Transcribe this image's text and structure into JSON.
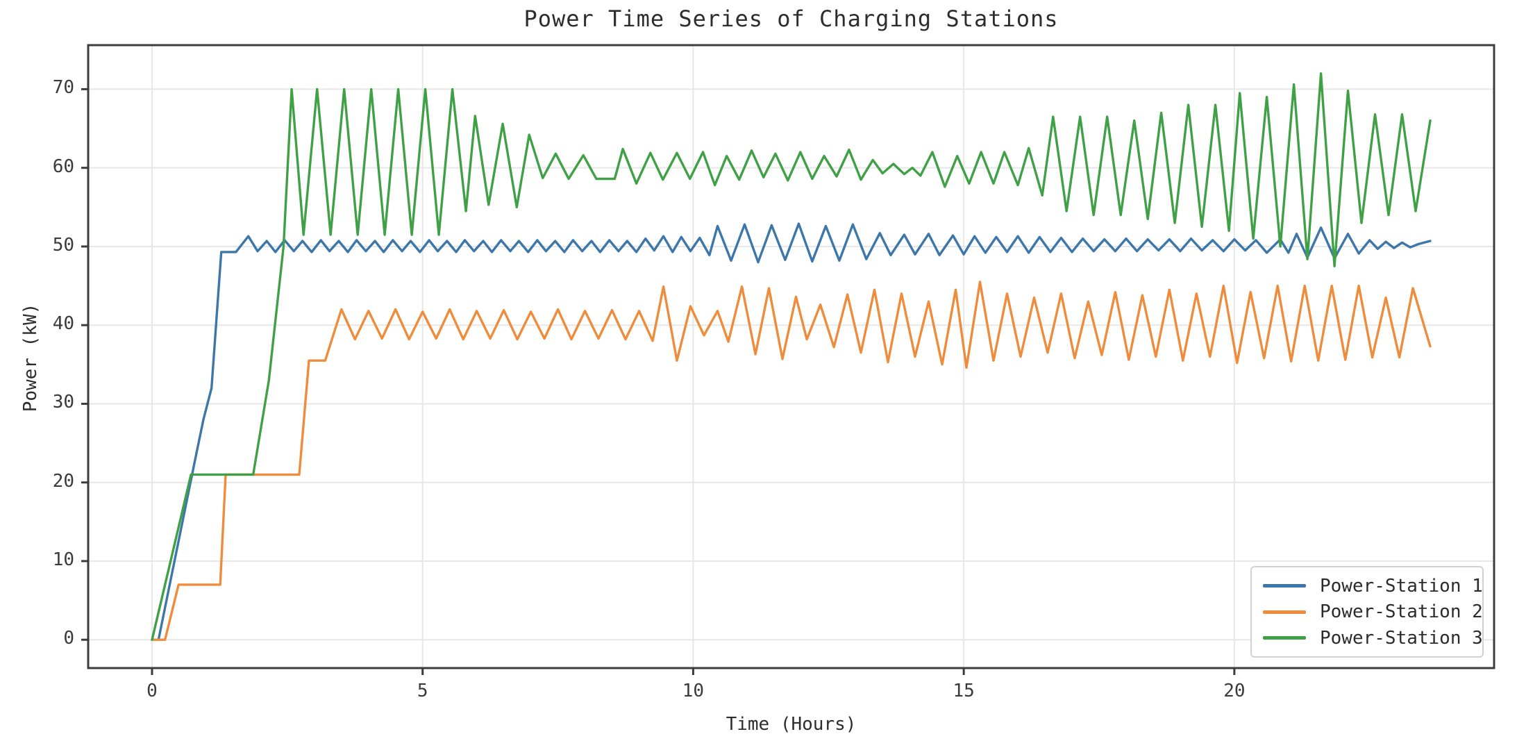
{
  "title": "Power Time Series of Charging Stations",
  "chart_data": {
    "type": "line",
    "title": "Power Time Series of Charging Stations",
    "xlabel": "Time (Hours)",
    "ylabel": "Power (kW)",
    "xlim": [
      -1.18,
      24.8
    ],
    "ylim": [
      -3.6,
      75.6
    ],
    "xticks": [
      0,
      5,
      10,
      15,
      20
    ],
    "yticks": [
      0,
      10,
      20,
      30,
      40,
      50,
      60,
      70
    ],
    "grid": true,
    "grid_color": "#e7e7e7",
    "spine_color": "#3c3c3c",
    "legend_position": "lower right",
    "series": [
      {
        "name": "Power-Station 1",
        "color": "#3d76a8",
        "points": [
          [
            0.12,
            0
          ],
          [
            0.8,
            23
          ],
          [
            0.95,
            28
          ],
          [
            1.1,
            32
          ],
          [
            1.28,
            49.3
          ],
          [
            1.55,
            49.3
          ],
          [
            1.78,
            51.3
          ],
          [
            1.95,
            49.4
          ],
          [
            2.12,
            50.7
          ],
          [
            2.28,
            49.3
          ],
          [
            2.45,
            50.8
          ],
          [
            2.62,
            49.4
          ],
          [
            2.78,
            50.7
          ],
          [
            2.95,
            49.3
          ],
          [
            3.12,
            50.8
          ],
          [
            3.28,
            49.4
          ],
          [
            3.45,
            50.7
          ],
          [
            3.62,
            49.3
          ],
          [
            3.78,
            50.8
          ],
          [
            3.95,
            49.4
          ],
          [
            4.12,
            50.7
          ],
          [
            4.28,
            49.3
          ],
          [
            4.45,
            50.8
          ],
          [
            4.62,
            49.4
          ],
          [
            4.78,
            50.7
          ],
          [
            4.95,
            49.3
          ],
          [
            5.12,
            50.8
          ],
          [
            5.28,
            49.4
          ],
          [
            5.45,
            50.7
          ],
          [
            5.62,
            49.3
          ],
          [
            5.78,
            50.8
          ],
          [
            5.95,
            49.4
          ],
          [
            6.12,
            50.7
          ],
          [
            6.28,
            49.3
          ],
          [
            6.45,
            50.8
          ],
          [
            6.62,
            49.4
          ],
          [
            6.78,
            50.7
          ],
          [
            6.95,
            49.3
          ],
          [
            7.12,
            50.8
          ],
          [
            7.28,
            49.4
          ],
          [
            7.45,
            50.7
          ],
          [
            7.62,
            49.3
          ],
          [
            7.78,
            50.8
          ],
          [
            7.95,
            49.4
          ],
          [
            8.12,
            50.7
          ],
          [
            8.28,
            49.3
          ],
          [
            8.45,
            50.8
          ],
          [
            8.62,
            49.4
          ],
          [
            8.78,
            50.7
          ],
          [
            8.95,
            49.3
          ],
          [
            9.12,
            51.0
          ],
          [
            9.28,
            49.5
          ],
          [
            9.45,
            51.3
          ],
          [
            9.62,
            49.3
          ],
          [
            9.78,
            51.2
          ],
          [
            9.95,
            49.4
          ],
          [
            10.12,
            51.1
          ],
          [
            10.3,
            48.9
          ],
          [
            10.45,
            52.6
          ],
          [
            10.7,
            48.2
          ],
          [
            10.95,
            52.8
          ],
          [
            11.2,
            48.0
          ],
          [
            11.45,
            52.7
          ],
          [
            11.7,
            48.3
          ],
          [
            11.95,
            52.9
          ],
          [
            12.2,
            48.1
          ],
          [
            12.45,
            52.6
          ],
          [
            12.7,
            48.2
          ],
          [
            12.95,
            52.8
          ],
          [
            13.2,
            48.4
          ],
          [
            13.45,
            51.7
          ],
          [
            13.65,
            48.9
          ],
          [
            13.9,
            51.5
          ],
          [
            14.1,
            49.0
          ],
          [
            14.35,
            51.6
          ],
          [
            14.55,
            48.9
          ],
          [
            14.8,
            51.4
          ],
          [
            15.0,
            49.0
          ],
          [
            15.2,
            51.3
          ],
          [
            15.4,
            49.2
          ],
          [
            15.6,
            51.2
          ],
          [
            15.8,
            49.3
          ],
          [
            16.0,
            51.3
          ],
          [
            16.2,
            49.2
          ],
          [
            16.4,
            51.2
          ],
          [
            16.6,
            49.3
          ],
          [
            16.8,
            51.1
          ],
          [
            17.0,
            49.3
          ],
          [
            17.2,
            51.0
          ],
          [
            17.4,
            49.4
          ],
          [
            17.6,
            50.9
          ],
          [
            17.8,
            49.4
          ],
          [
            18.0,
            51.0
          ],
          [
            18.2,
            49.4
          ],
          [
            18.4,
            50.9
          ],
          [
            18.6,
            49.5
          ],
          [
            18.8,
            50.9
          ],
          [
            19.0,
            49.4
          ],
          [
            19.2,
            51.0
          ],
          [
            19.4,
            49.5
          ],
          [
            19.6,
            50.8
          ],
          [
            19.8,
            49.4
          ],
          [
            20.0,
            50.9
          ],
          [
            20.2,
            49.5
          ],
          [
            20.4,
            50.8
          ],
          [
            20.6,
            49.2
          ],
          [
            20.85,
            50.9
          ],
          [
            21.0,
            49.2
          ],
          [
            21.15,
            51.6
          ],
          [
            21.35,
            48.6
          ],
          [
            21.6,
            52.4
          ],
          [
            21.85,
            48.5
          ],
          [
            22.1,
            51.6
          ],
          [
            22.3,
            49.1
          ],
          [
            22.5,
            50.8
          ],
          [
            22.65,
            49.7
          ],
          [
            22.8,
            50.6
          ],
          [
            22.95,
            49.8
          ],
          [
            23.1,
            50.5
          ],
          [
            23.25,
            49.9
          ],
          [
            23.4,
            50.3
          ],
          [
            23.62,
            50.7
          ]
        ]
      },
      {
        "name": "Power-Station 2",
        "color": "#ee8c3c",
        "points": [
          [
            0,
            0
          ],
          [
            0.24,
            0
          ],
          [
            0.49,
            7
          ],
          [
            1.26,
            7
          ],
          [
            1.36,
            21
          ],
          [
            2.72,
            21
          ],
          [
            2.9,
            35.5
          ],
          [
            3.2,
            35.5
          ],
          [
            3.5,
            42
          ],
          [
            3.75,
            38.2
          ],
          [
            4.0,
            41.8
          ],
          [
            4.25,
            38.3
          ],
          [
            4.5,
            42.0
          ],
          [
            4.75,
            38.2
          ],
          [
            5.0,
            41.7
          ],
          [
            5.25,
            38.3
          ],
          [
            5.5,
            42.0
          ],
          [
            5.75,
            38.2
          ],
          [
            6.0,
            41.8
          ],
          [
            6.25,
            38.3
          ],
          [
            6.5,
            41.9
          ],
          [
            6.75,
            38.2
          ],
          [
            7.0,
            41.7
          ],
          [
            7.25,
            38.3
          ],
          [
            7.5,
            42.0
          ],
          [
            7.75,
            38.2
          ],
          [
            8.0,
            41.8
          ],
          [
            8.25,
            38.3
          ],
          [
            8.5,
            41.9
          ],
          [
            8.75,
            38.2
          ],
          [
            9.0,
            41.8
          ],
          [
            9.25,
            38.0
          ],
          [
            9.45,
            44.9
          ],
          [
            9.7,
            35.5
          ],
          [
            9.95,
            42.4
          ],
          [
            10.2,
            38.7
          ],
          [
            10.45,
            41.8
          ],
          [
            10.65,
            37.9
          ],
          [
            10.9,
            44.9
          ],
          [
            11.15,
            36.3
          ],
          [
            11.4,
            44.7
          ],
          [
            11.65,
            35.7
          ],
          [
            11.9,
            43.6
          ],
          [
            12.1,
            38.2
          ],
          [
            12.35,
            42.6
          ],
          [
            12.6,
            37.2
          ],
          [
            12.85,
            43.9
          ],
          [
            13.1,
            36.5
          ],
          [
            13.35,
            44.5
          ],
          [
            13.6,
            35.3
          ],
          [
            13.85,
            44.0
          ],
          [
            14.1,
            36.0
          ],
          [
            14.35,
            43.0
          ],
          [
            14.6,
            35.0
          ],
          [
            14.85,
            44.5
          ],
          [
            15.05,
            34.6
          ],
          [
            15.3,
            45.5
          ],
          [
            15.55,
            35.5
          ],
          [
            15.8,
            44.0
          ],
          [
            16.05,
            36.0
          ],
          [
            16.3,
            43.5
          ],
          [
            16.55,
            36.5
          ],
          [
            16.8,
            44.0
          ],
          [
            17.05,
            35.8
          ],
          [
            17.3,
            43.0
          ],
          [
            17.55,
            36.2
          ],
          [
            17.8,
            44.2
          ],
          [
            18.05,
            35.6
          ],
          [
            18.3,
            43.8
          ],
          [
            18.55,
            36.0
          ],
          [
            18.8,
            44.5
          ],
          [
            19.05,
            35.5
          ],
          [
            19.3,
            44.0
          ],
          [
            19.55,
            36.0
          ],
          [
            19.8,
            45.0
          ],
          [
            20.05,
            35.2
          ],
          [
            20.3,
            44.2
          ],
          [
            20.55,
            35.8
          ],
          [
            20.8,
            45.0
          ],
          [
            21.05,
            35.4
          ],
          [
            21.3,
            45.0
          ],
          [
            21.55,
            35.5
          ],
          [
            21.8,
            45.0
          ],
          [
            22.05,
            35.6
          ],
          [
            22.3,
            45.0
          ],
          [
            22.55,
            35.9
          ],
          [
            22.8,
            43.5
          ],
          [
            23.05,
            35.9
          ],
          [
            23.3,
            44.7
          ],
          [
            23.62,
            37.3
          ]
        ]
      },
      {
        "name": "Power-Station 3",
        "color": "#3fa046",
        "points": [
          [
            0,
            0
          ],
          [
            0.72,
            21
          ],
          [
            1.87,
            21
          ],
          [
            2.16,
            33
          ],
          [
            2.43,
            50
          ],
          [
            2.58,
            70
          ],
          [
            2.8,
            51.5
          ],
          [
            3.05,
            70
          ],
          [
            3.3,
            51.5
          ],
          [
            3.55,
            70
          ],
          [
            3.8,
            51.5
          ],
          [
            4.05,
            70
          ],
          [
            4.3,
            51.5
          ],
          [
            4.55,
            70
          ],
          [
            4.8,
            51.5
          ],
          [
            5.05,
            70
          ],
          [
            5.3,
            51.5
          ],
          [
            5.55,
            70
          ],
          [
            5.8,
            54.5
          ],
          [
            5.97,
            66.6
          ],
          [
            6.22,
            55.3
          ],
          [
            6.48,
            65.6
          ],
          [
            6.74,
            55.0
          ],
          [
            6.97,
            64.2
          ],
          [
            7.22,
            58.7
          ],
          [
            7.46,
            61.8
          ],
          [
            7.7,
            58.6
          ],
          [
            7.97,
            61.6
          ],
          [
            8.21,
            58.6
          ],
          [
            8.55,
            58.6
          ],
          [
            8.7,
            62.4
          ],
          [
            8.95,
            58.0
          ],
          [
            9.21,
            61.9
          ],
          [
            9.44,
            58.5
          ],
          [
            9.7,
            61.9
          ],
          [
            9.94,
            58.6
          ],
          [
            10.18,
            62.0
          ],
          [
            10.4,
            57.8
          ],
          [
            10.62,
            61.5
          ],
          [
            10.85,
            58.5
          ],
          [
            11.08,
            62.2
          ],
          [
            11.3,
            58.8
          ],
          [
            11.52,
            61.8
          ],
          [
            11.75,
            58.4
          ],
          [
            11.98,
            62.0
          ],
          [
            12.2,
            58.6
          ],
          [
            12.42,
            61.5
          ],
          [
            12.65,
            58.9
          ],
          [
            12.88,
            62.3
          ],
          [
            13.1,
            58.5
          ],
          [
            13.32,
            61.0
          ],
          [
            13.5,
            59.3
          ],
          [
            13.7,
            60.5
          ],
          [
            13.9,
            59.2
          ],
          [
            14.05,
            60.0
          ],
          [
            14.2,
            59.0
          ],
          [
            14.42,
            62.0
          ],
          [
            14.65,
            57.6
          ],
          [
            14.88,
            61.5
          ],
          [
            15.1,
            58.0
          ],
          [
            15.32,
            62.0
          ],
          [
            15.55,
            58.0
          ],
          [
            15.75,
            62.0
          ],
          [
            16.0,
            57.8
          ],
          [
            16.2,
            62.5
          ],
          [
            16.45,
            56.5
          ],
          [
            16.65,
            66.5
          ],
          [
            16.9,
            54.5
          ],
          [
            17.15,
            66.5
          ],
          [
            17.4,
            54.0
          ],
          [
            17.65,
            66.5
          ],
          [
            17.9,
            54.0
          ],
          [
            18.15,
            66.0
          ],
          [
            18.4,
            53.5
          ],
          [
            18.65,
            67.0
          ],
          [
            18.9,
            53.0
          ],
          [
            19.15,
            68.0
          ],
          [
            19.4,
            52.5
          ],
          [
            19.65,
            68.0
          ],
          [
            19.9,
            52.0
          ],
          [
            20.1,
            69.5
          ],
          [
            20.35,
            51.0
          ],
          [
            20.6,
            69.0
          ],
          [
            20.85,
            50.0
          ],
          [
            21.1,
            70.6
          ],
          [
            21.35,
            48.4
          ],
          [
            21.6,
            72.0
          ],
          [
            21.85,
            47.5
          ],
          [
            22.1,
            69.8
          ],
          [
            22.35,
            53.0
          ],
          [
            22.6,
            66.8
          ],
          [
            22.85,
            54.0
          ],
          [
            23.1,
            66.8
          ],
          [
            23.35,
            54.5
          ],
          [
            23.62,
            66.0
          ]
        ]
      }
    ]
  }
}
